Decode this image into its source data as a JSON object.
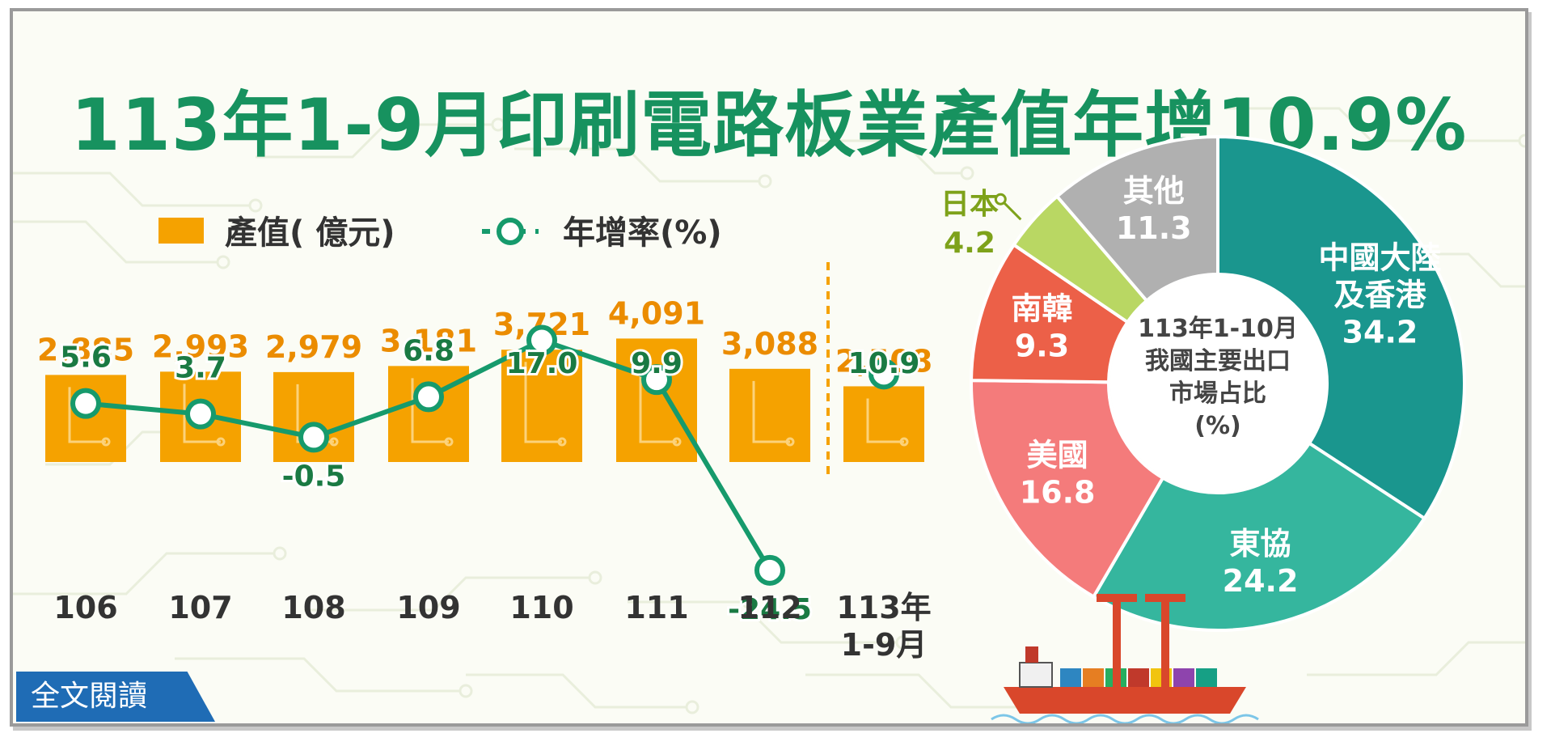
{
  "title": "113年1-9月印刷電路板業產值年增10.9%",
  "read_more_label": "全文閱讀",
  "colors": {
    "title": "#17925f",
    "bar": "#f5a200",
    "bar_value": "#eb8c00",
    "growth_line": "#169a6c",
    "label_green": "#1a7a43",
    "japan_label": "#7ea21a"
  },
  "chart_data": [
    {
      "type": "bar",
      "title": "",
      "categories": [
        "106",
        "107",
        "108",
        "109",
        "110",
        "111",
        "112",
        "113年\n1-9月"
      ],
      "series": [
        {
          "name": "產值( 億元)",
          "type": "bar",
          "values": [
            2885,
            2993,
            2979,
            3181,
            3721,
            4091,
            3088,
            2508
          ],
          "labels": [
            "2,885",
            "2,993",
            "2,979",
            "3,181",
            "3,721",
            "4,091",
            "3,088",
            "2,508"
          ]
        },
        {
          "name": "年增率(%)",
          "type": "line",
          "values": [
            5.6,
            3.7,
            -0.5,
            6.8,
            17.0,
            9.9,
            -24.5,
            10.9
          ],
          "labels": [
            "5.6",
            "3.7",
            "-0.5",
            "6.8",
            "17.0",
            "9.9",
            "-24.5",
            "10.9"
          ],
          "connected": [
            true,
            true,
            true,
            true,
            true,
            true,
            true,
            false
          ]
        }
      ],
      "legend": [
        "產值( 億元)",
        "年增率(%)"
      ],
      "legend_position": "top-left",
      "grid": false
    },
    {
      "type": "pie",
      "donut": true,
      "center_label": [
        "113年1-10月",
        "我國主要出口",
        "市場占比",
        "(%)"
      ],
      "slices": [
        {
          "label": "中國大陸\n及香港",
          "value": 34.2,
          "value_label": "34.2",
          "color": "#1a968e"
        },
        {
          "label": "東協",
          "value": 24.2,
          "value_label": "24.2",
          "color": "#35b69e"
        },
        {
          "label": "美國",
          "value": 16.8,
          "value_label": "16.8",
          "color": "#f47b7b"
        },
        {
          "label": "南韓",
          "value": 9.3,
          "value_label": "9.3",
          "color": "#ec6048"
        },
        {
          "label": "日本",
          "value": 4.2,
          "value_label": "4.2",
          "color": "#b9d763"
        },
        {
          "label": "其他",
          "value": 11.3,
          "value_label": "11.3",
          "color": "#b0b0b0"
        }
      ]
    }
  ]
}
